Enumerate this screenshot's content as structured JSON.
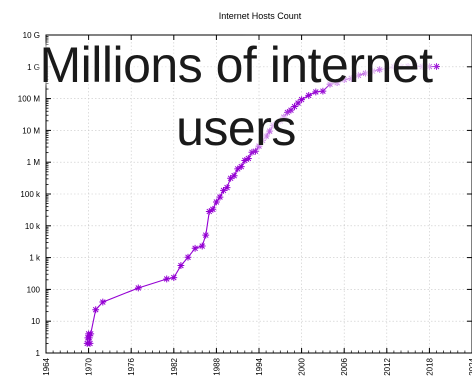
{
  "overlay_caption": {
    "line1": "Millions of internet",
    "line2": "users"
  },
  "colors": {
    "series": "#9400d3",
    "grid": "#c8c8c8",
    "axis": "#000000"
  },
  "chart_data": {
    "type": "line",
    "title": "Internet Hosts Count",
    "xlabel": "",
    "ylabel": "",
    "y_scale": "log",
    "xlim": [
      1964,
      2024
    ],
    "ylim": [
      1,
      10000000000
    ],
    "x_ticks": [
      "1964",
      "1970",
      "1976",
      "1982",
      "1988",
      "1994",
      "2000",
      "2006",
      "2012",
      "2018",
      "2024"
    ],
    "y_ticks": [
      {
        "value": 1,
        "label": "1"
      },
      {
        "value": 10,
        "label": "10"
      },
      {
        "value": 100,
        "label": "100"
      },
      {
        "value": 1000,
        "label": "1 k"
      },
      {
        "value": 10000,
        "label": "10 k"
      },
      {
        "value": 100000,
        "label": "100 k"
      },
      {
        "value": 1000000,
        "label": "1 M"
      },
      {
        "value": 10000000,
        "label": "10 M"
      },
      {
        "value": 100000000,
        "label": "100 M"
      },
      {
        "value": 1000000000,
        "label": "1 G"
      },
      {
        "value": 10000000000,
        "label": "10 G"
      }
    ],
    "grid": true,
    "marker": "asterisk",
    "series": [
      {
        "x": [
          1969.8,
          1969.9,
          1970,
          1970.1,
          1970.2,
          1970.3,
          1971,
          1972,
          1977,
          1981,
          1982,
          1983,
          1984,
          1985,
          1986,
          1986.5,
          1987,
          1987.5,
          1988,
          1988.5,
          1989,
          1989.5,
          1990,
          1990.5,
          1991,
          1991.5,
          1992,
          1992.5,
          1993,
          1993.5,
          1994,
          1994.5,
          1995,
          1995.5,
          1996,
          1996.5,
          1997,
          1997.5,
          1998,
          1998.5,
          1999,
          1999.5,
          2000,
          2001,
          2002,
          2003,
          2004,
          2005,
          2006,
          2007,
          2008,
          2009,
          2010,
          2011,
          2012,
          2013,
          2014,
          2015,
          2016,
          2017,
          2018,
          2019
        ],
        "values": [
          2,
          3,
          4,
          3,
          2,
          4,
          23,
          40,
          111,
          213,
          235,
          562,
          1024,
          1961,
          2308,
          5089,
          28174,
          33000,
          56000,
          80000,
          130000,
          159000,
          313000,
          376000,
          617000,
          727000,
          1136000,
          1313000,
          2056000,
          2217000,
          3212000,
          4852000,
          6642000,
          9472000,
          14352000,
          16729000,
          19540000,
          26053000,
          36739000,
          43230000,
          56218000,
          72398000,
          93047000,
          125888000,
          162128000,
          171638000,
          285139000,
          317646000,
          394991000,
          433193000,
          541677000,
          625226000,
          732740000,
          818374000,
          888239000,
          996230000,
          1010251000,
          1033000000,
          1062000000,
          1015000000,
          1018000000,
          1020000000
        ]
      }
    ]
  }
}
